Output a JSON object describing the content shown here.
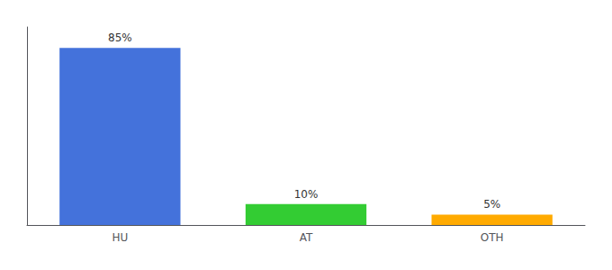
{
  "chart_data": {
    "type": "bar",
    "categories": [
      "HU",
      "AT",
      "OTH"
    ],
    "values": [
      85,
      10,
      5
    ],
    "value_labels": [
      "85%",
      "10%",
      "5%"
    ],
    "colors": [
      "#4472db",
      "#33cc33",
      "#ffaa00"
    ],
    "ylim": [
      0,
      95
    ],
    "grid": false,
    "data_labels": true,
    "tick_labels": "x"
  }
}
